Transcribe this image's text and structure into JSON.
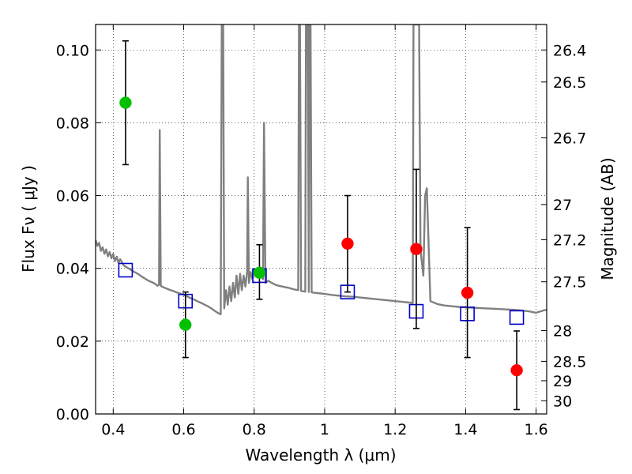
{
  "chart_data": {
    "type": "scatter",
    "title": "",
    "xlabel": "Wavelength  λ (μm)",
    "ylabel": "Flux  Fν  ( μJy )",
    "ylabel_right": "Magnitude (AB)",
    "xlim": [
      0.35,
      1.63
    ],
    "ylim": [
      0.0,
      0.107
    ],
    "grid": true,
    "grid_style": "dotted",
    "x_ticks": [
      0.4,
      0.6,
      0.8,
      1.0,
      1.2,
      1.4,
      1.6
    ],
    "x_tick_labels": [
      "0.4",
      "0.6",
      "0.8",
      "1",
      "1.2",
      "1.4",
      "1.6"
    ],
    "y_ticks": [
      0.0,
      0.02,
      0.04,
      0.06,
      0.08,
      0.1
    ],
    "y_tick_labels": [
      "0.00",
      "0.02",
      "0.04",
      "0.06",
      "0.08",
      "0.10"
    ],
    "right_ticks": [
      26.4,
      26.5,
      26.7,
      27,
      27.2,
      27.5,
      28,
      28.5,
      29,
      30
    ],
    "right_tick_labels": [
      "26.4",
      "26.5",
      "26.7",
      "27",
      "27.2",
      "27.5",
      "28",
      "28.5",
      "29",
      "30"
    ],
    "series": [
      {
        "kind": "spectrum",
        "color": "#808080",
        "points": [
          [
            0.35,
            0.0478
          ],
          [
            0.355,
            0.0462
          ],
          [
            0.36,
            0.047
          ],
          [
            0.365,
            0.0448
          ],
          [
            0.37,
            0.0458
          ],
          [
            0.375,
            0.044
          ],
          [
            0.38,
            0.0452
          ],
          [
            0.385,
            0.0433
          ],
          [
            0.39,
            0.0445
          ],
          [
            0.395,
            0.0428
          ],
          [
            0.4,
            0.044
          ],
          [
            0.405,
            0.042
          ],
          [
            0.41,
            0.0432
          ],
          [
            0.415,
            0.0415
          ],
          [
            0.42,
            0.0425
          ],
          [
            0.43,
            0.0408
          ],
          [
            0.44,
            0.0402
          ],
          [
            0.45,
            0.0396
          ],
          [
            0.46,
            0.039
          ],
          [
            0.47,
            0.0385
          ],
          [
            0.48,
            0.0378
          ],
          [
            0.49,
            0.0372
          ],
          [
            0.5,
            0.0366
          ],
          [
            0.51,
            0.0362
          ],
          [
            0.52,
            0.0357
          ],
          [
            0.525,
            0.0352
          ],
          [
            0.53,
            0.0355
          ],
          [
            0.532,
            0.078
          ],
          [
            0.535,
            0.0352
          ],
          [
            0.54,
            0.0349
          ],
          [
            0.55,
            0.0345
          ],
          [
            0.56,
            0.0341
          ],
          [
            0.57,
            0.0338
          ],
          [
            0.58,
            0.0334
          ],
          [
            0.59,
            0.0331
          ],
          [
            0.6,
            0.0327
          ],
          [
            0.61,
            0.0323
          ],
          [
            0.62,
            0.0318
          ],
          [
            0.63,
            0.0314
          ],
          [
            0.64,
            0.0309
          ],
          [
            0.65,
            0.0305
          ],
          [
            0.66,
            0.03
          ],
          [
            0.67,
            0.0295
          ],
          [
            0.68,
            0.0289
          ],
          [
            0.69,
            0.0282
          ],
          [
            0.7,
            0.0276
          ],
          [
            0.705,
            0.0274
          ],
          [
            0.708,
            0.107
          ],
          [
            0.712,
            0.107
          ],
          [
            0.715,
            0.029
          ],
          [
            0.72,
            0.034
          ],
          [
            0.725,
            0.03
          ],
          [
            0.73,
            0.035
          ],
          [
            0.735,
            0.031
          ],
          [
            0.74,
            0.036
          ],
          [
            0.745,
            0.032
          ],
          [
            0.75,
            0.038
          ],
          [
            0.755,
            0.033
          ],
          [
            0.76,
            0.0385
          ],
          [
            0.765,
            0.034
          ],
          [
            0.77,
            0.038
          ],
          [
            0.775,
            0.035
          ],
          [
            0.78,
            0.039
          ],
          [
            0.782,
            0.065
          ],
          [
            0.785,
            0.036
          ],
          [
            0.79,
            0.039
          ],
          [
            0.795,
            0.037
          ],
          [
            0.8,
            0.0395
          ],
          [
            0.81,
            0.038
          ],
          [
            0.82,
            0.0385
          ],
          [
            0.825,
            0.037
          ],
          [
            0.828,
            0.08
          ],
          [
            0.832,
            0.036
          ],
          [
            0.84,
            0.0366
          ],
          [
            0.85,
            0.036
          ],
          [
            0.86,
            0.0355
          ],
          [
            0.87,
            0.0352
          ],
          [
            0.88,
            0.035
          ],
          [
            0.89,
            0.0348
          ],
          [
            0.9,
            0.0346
          ],
          [
            0.91,
            0.0343
          ],
          [
            0.92,
            0.0341
          ],
          [
            0.925,
            0.034
          ],
          [
            0.927,
            0.107
          ],
          [
            0.93,
            0.107
          ],
          [
            0.933,
            0.0338
          ],
          [
            0.94,
            0.0337
          ],
          [
            0.945,
            0.0336
          ],
          [
            0.947,
            0.107
          ],
          [
            0.952,
            0.107
          ],
          [
            0.955,
            0.0335
          ],
          [
            0.957,
            0.107
          ],
          [
            0.96,
            0.107
          ],
          [
            0.963,
            0.0334
          ],
          [
            0.97,
            0.0333
          ],
          [
            0.98,
            0.0332
          ],
          [
            0.99,
            0.0331
          ],
          [
            1.0,
            0.033
          ],
          [
            1.02,
            0.0327
          ],
          [
            1.04,
            0.0325
          ],
          [
            1.06,
            0.0323
          ],
          [
            1.08,
            0.0322
          ],
          [
            1.1,
            0.032
          ],
          [
            1.12,
            0.0318
          ],
          [
            1.14,
            0.0316
          ],
          [
            1.16,
            0.0314
          ],
          [
            1.18,
            0.0312
          ],
          [
            1.2,
            0.031
          ],
          [
            1.22,
            0.0308
          ],
          [
            1.24,
            0.0306
          ],
          [
            1.25,
            0.0305
          ],
          [
            1.252,
            0.107
          ],
          [
            1.268,
            0.107
          ],
          [
            1.272,
            0.045
          ],
          [
            1.28,
            0.038
          ],
          [
            1.285,
            0.06
          ],
          [
            1.29,
            0.062
          ],
          [
            1.3,
            0.031
          ],
          [
            1.32,
            0.0302
          ],
          [
            1.34,
            0.0298
          ],
          [
            1.36,
            0.0296
          ],
          [
            1.38,
            0.0294
          ],
          [
            1.4,
            0.0293
          ],
          [
            1.42,
            0.0292
          ],
          [
            1.44,
            0.0291
          ],
          [
            1.46,
            0.029
          ],
          [
            1.48,
            0.0289
          ],
          [
            1.5,
            0.0288
          ],
          [
            1.52,
            0.0287
          ],
          [
            1.54,
            0.0286
          ],
          [
            1.56,
            0.0284
          ],
          [
            1.58,
            0.0282
          ],
          [
            1.6,
            0.0278
          ],
          [
            1.62,
            0.0284
          ],
          [
            1.63,
            0.0286
          ]
        ]
      },
      {
        "kind": "model-squares",
        "color": "#0000cc",
        "points": [
          [
            0.435,
            0.0395
          ],
          [
            0.605,
            0.031
          ],
          [
            0.815,
            0.038
          ],
          [
            1.065,
            0.0335
          ],
          [
            1.26,
            0.0282
          ],
          [
            1.405,
            0.0275
          ],
          [
            1.545,
            0.0265
          ]
        ]
      },
      {
        "kind": "observed-green",
        "color": "#00c000",
        "points": [
          {
            "x": 0.435,
            "y": 0.0855,
            "lo": 0.0685,
            "hi": 0.1025
          },
          {
            "x": 0.605,
            "y": 0.0245,
            "lo": 0.0155,
            "hi": 0.0335
          },
          {
            "x": 0.815,
            "y": 0.0388,
            "lo": 0.0315,
            "hi": 0.0465
          }
        ]
      },
      {
        "kind": "observed-red",
        "color": "#ff0000",
        "points": [
          {
            "x": 1.065,
            "y": 0.0468,
            "lo": 0.0335,
            "hi": 0.06
          },
          {
            "x": 1.26,
            "y": 0.0453,
            "lo": 0.0235,
            "hi": 0.0672
          },
          {
            "x": 1.405,
            "y": 0.0333,
            "lo": 0.0155,
            "hi": 0.0512
          },
          {
            "x": 1.545,
            "y": 0.012,
            "lo": 0.0012,
            "hi": 0.0228
          }
        ]
      }
    ]
  }
}
